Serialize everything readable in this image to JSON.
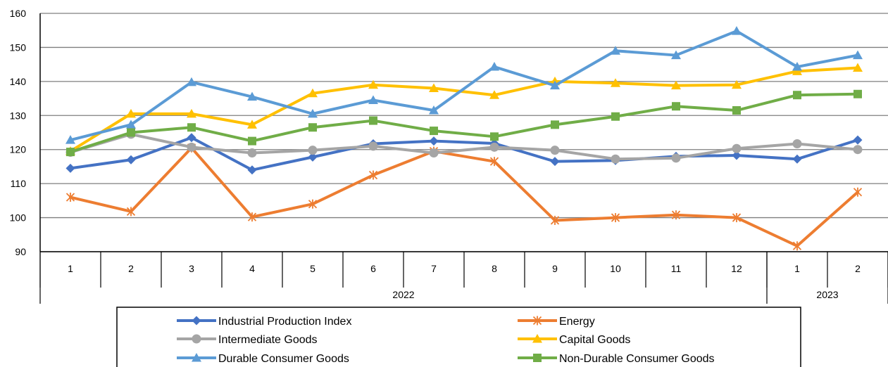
{
  "chart_data": {
    "type": "line",
    "title": "",
    "xlabel": "",
    "ylabel": "",
    "ylim": [
      90,
      160
    ],
    "yticks": [
      90,
      100,
      110,
      120,
      130,
      140,
      150,
      160
    ],
    "grid": true,
    "legend_position": "bottom",
    "categories": [
      "1",
      "2",
      "3",
      "4",
      "5",
      "6",
      "7",
      "8",
      "9",
      "10",
      "11",
      "12",
      "1",
      "2"
    ],
    "year_groups": [
      {
        "label": "2022",
        "span": 12
      },
      {
        "label": "2023",
        "span": 2
      }
    ],
    "series": [
      {
        "name": "Industrial Production Index",
        "color": "#4472C4",
        "marker": "diamond",
        "values": [
          114.5,
          117.0,
          123.5,
          114.0,
          117.8,
          121.7,
          122.5,
          121.8,
          116.5,
          116.8,
          118.0,
          118.3,
          117.2,
          122.8
        ]
      },
      {
        "name": "Energy",
        "color": "#ED7D31",
        "marker": "star",
        "values": [
          106.0,
          101.8,
          120.5,
          100.2,
          104.0,
          112.5,
          119.5,
          116.5,
          99.2,
          100.0,
          100.8,
          100.0,
          91.7,
          107.5
        ]
      },
      {
        "name": "Intermediate Goods",
        "color": "#A5A5A5",
        "marker": "circle",
        "values": [
          119.2,
          124.5,
          120.7,
          119.0,
          119.8,
          121.0,
          119.0,
          120.7,
          119.8,
          117.2,
          117.5,
          120.3,
          121.7,
          120.0
        ]
      },
      {
        "name": "Capital Goods",
        "color": "#FFC000",
        "marker": "triangle",
        "values": [
          119.5,
          130.5,
          130.5,
          127.3,
          136.5,
          139.0,
          138.0,
          136.0,
          140.0,
          139.5,
          138.8,
          139.0,
          143.0,
          144.0
        ]
      },
      {
        "name": "Durable Consumer Goods",
        "color": "#5B9BD5",
        "marker": "triangle",
        "values": [
          122.8,
          127.3,
          139.8,
          135.5,
          130.5,
          134.5,
          131.5,
          144.3,
          138.8,
          149.0,
          147.7,
          154.8,
          144.3,
          147.7
        ]
      },
      {
        "name": "Non-Durable Consumer Goods",
        "color": "#70AD47",
        "marker": "square",
        "values": [
          119.3,
          125.0,
          126.5,
          122.5,
          126.5,
          128.5,
          125.5,
          123.8,
          127.3,
          129.7,
          132.7,
          131.5,
          136.0,
          136.3
        ]
      }
    ]
  }
}
